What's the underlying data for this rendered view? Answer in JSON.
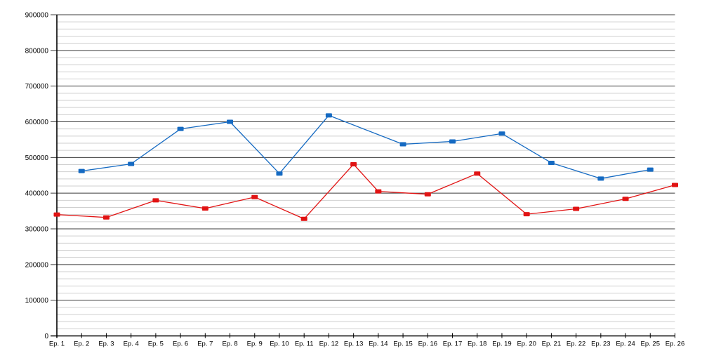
{
  "chart_data": {
    "type": "line",
    "title": "",
    "xlabel": "",
    "ylabel": "",
    "legend": "none",
    "grid": "on",
    "ylim": [
      0,
      900000
    ],
    "y_major_step": 100000,
    "y_minor_step": 20000,
    "y_tick_labels": [
      "0",
      "100000",
      "200000",
      "300000",
      "400000",
      "500000",
      "600000",
      "700000",
      "800000",
      "900000"
    ],
    "categories": [
      "Ep. 1",
      "Ep. 2",
      "Ep. 3",
      "Ep. 4",
      "Ep. 5",
      "Ep. 6",
      "Ep. 7",
      "Ep. 8",
      "Ep. 9",
      "Ep. 10",
      "Ep. 11",
      "Ep. 12",
      "Ep. 13",
      "Ep. 14",
      "Ep. 15",
      "Ep. 16",
      "Ep. 17",
      "Ep. 18",
      "Ep. 19",
      "Ep. 20",
      "Ep. 21",
      "Ep. 22",
      "Ep. 23",
      "Ep. 24",
      "Ep. 25",
      "Ep. 26"
    ],
    "series": [
      {
        "name": "blue-series",
        "color": "#156ac2",
        "marker": "square",
        "points": [
          {
            "category": "Ep. 2",
            "x": 2,
            "y": 462000
          },
          {
            "category": "Ep. 4",
            "x": 4,
            "y": 482000
          },
          {
            "category": "Ep. 6",
            "x": 6,
            "y": 580000
          },
          {
            "category": "Ep. 8",
            "x": 8,
            "y": 600000
          },
          {
            "category": "Ep. 10",
            "x": 10,
            "y": 455000
          },
          {
            "category": "Ep. 12",
            "x": 12,
            "y": 618000
          },
          {
            "category": "Ep. 15",
            "x": 15,
            "y": 537000
          },
          {
            "category": "Ep. 17",
            "x": 17,
            "y": 545000
          },
          {
            "category": "Ep. 19",
            "x": 19,
            "y": 567000
          },
          {
            "category": "Ep. 21",
            "x": 21,
            "y": 485000
          },
          {
            "category": "Ep. 23",
            "x": 23,
            "y": 441000
          },
          {
            "category": "Ep. 25",
            "x": 25,
            "y": 466000
          }
        ]
      },
      {
        "name": "red-series",
        "color": "#e11313",
        "marker": "square",
        "points": [
          {
            "category": "Ep. 1",
            "x": 1,
            "y": 340000
          },
          {
            "category": "Ep. 3",
            "x": 3,
            "y": 332000
          },
          {
            "category": "Ep. 5",
            "x": 5,
            "y": 380000
          },
          {
            "category": "Ep. 7",
            "x": 7,
            "y": 357000
          },
          {
            "category": "Ep. 9",
            "x": 9,
            "y": 389000
          },
          {
            "category": "Ep. 11",
            "x": 11,
            "y": 328000
          },
          {
            "category": "Ep. 13",
            "x": 13,
            "y": 481000
          },
          {
            "category": "Ep. 14",
            "x": 14,
            "y": 405000
          },
          {
            "category": "Ep. 16",
            "x": 16,
            "y": 397000
          },
          {
            "category": "Ep. 18",
            "x": 18,
            "y": 455000
          },
          {
            "category": "Ep. 20",
            "x": 20,
            "y": 341000
          },
          {
            "category": "Ep. 22",
            "x": 22,
            "y": 356000
          },
          {
            "category": "Ep. 24",
            "x": 24,
            "y": 384000
          },
          {
            "category": "Ep. 26",
            "x": 26,
            "y": 423000
          }
        ]
      }
    ]
  },
  "colors": {
    "background": "#ffffff",
    "major_gridline": "#3c3c3c",
    "minor_gridline": "#cfcfcf",
    "axis": "#000000",
    "text": "#000000",
    "blue_series": "#156ac2",
    "red_series": "#e11313"
  }
}
